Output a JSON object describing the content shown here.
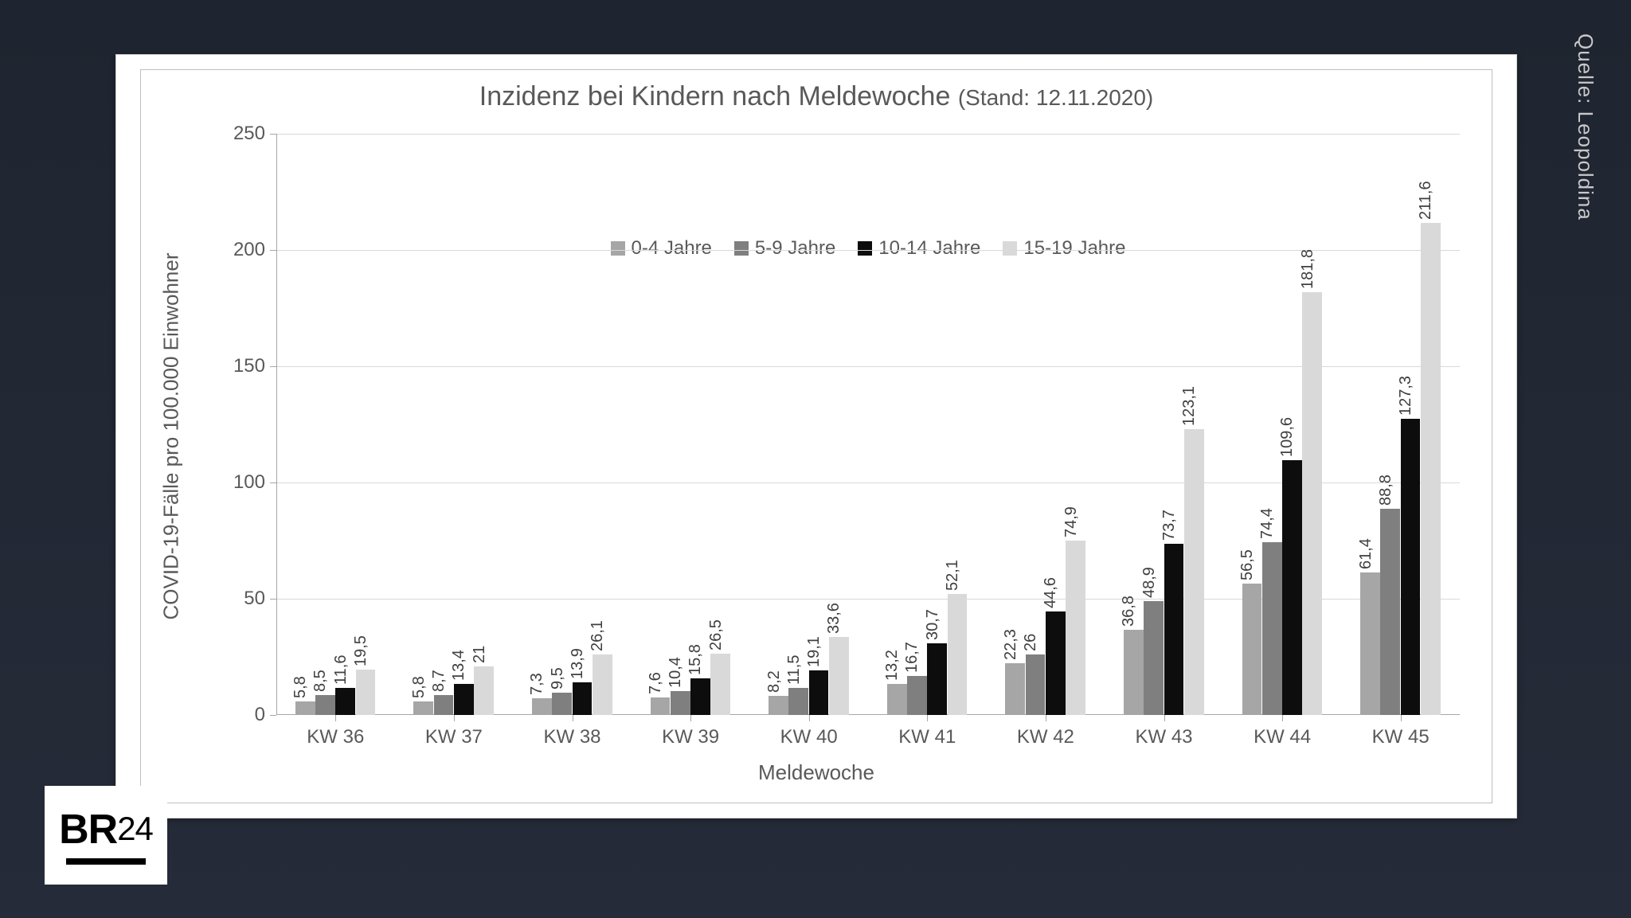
{
  "background_gradient": [
    "#1f2530",
    "#252b38"
  ],
  "chart": {
    "type": "grouped-bar",
    "title_main": "Inzidenz bei Kindern nach Meldewoche",
    "title_sub": "(Stand: 12.11.2020)",
    "title_fontsize": 34,
    "title_color": "#595959",
    "xlabel": "Meldewoche",
    "ylabel": "COVID-19-Fälle pro 100.000 Einwohner",
    "label_fontsize": 26,
    "label_color": "#595959",
    "ylim": [
      0,
      250
    ],
    "ytick_step": 50,
    "yticks": [
      0,
      50,
      100,
      150,
      200,
      250
    ],
    "grid_color": "#d9d9d9",
    "axis_color": "#a6a6a6",
    "background_color": "#ffffff",
    "border_color": "#bfbfbf",
    "categories": [
      "KW 36",
      "KW 37",
      "KW 38",
      "KW 39",
      "KW 40",
      "KW 41",
      "KW 42",
      "KW 43",
      "KW 44",
      "KW 45"
    ],
    "series": [
      {
        "name": "0-4 Jahre",
        "color": "#a6a6a6"
      },
      {
        "name": "5-9 Jahre",
        "color": "#7f7f7f"
      },
      {
        "name": "10-14 Jahre",
        "color": "#0d0d0d"
      },
      {
        "name": "15-19 Jahre",
        "color": "#d9d9d9"
      }
    ],
    "values": [
      [
        5.8,
        8.5,
        11.6,
        19.5
      ],
      [
        5.8,
        8.7,
        13.4,
        21.0
      ],
      [
        7.3,
        9.5,
        13.9,
        26.1
      ],
      [
        7.6,
        10.4,
        15.8,
        26.5
      ],
      [
        8.2,
        11.5,
        19.1,
        33.6
      ],
      [
        13.2,
        16.7,
        30.7,
        52.1
      ],
      [
        22.3,
        26.0,
        44.6,
        74.9
      ],
      [
        36.8,
        48.9,
        73.7,
        123.1
      ],
      [
        56.5,
        74.4,
        109.6,
        181.8
      ],
      [
        61.4,
        88.8,
        127.3,
        211.6
      ]
    ],
    "value_labels": [
      [
        "5,8",
        "8,5",
        "11,6",
        "19,5"
      ],
      [
        "5,8",
        "8,7",
        "13,4",
        "21"
      ],
      [
        "7,3",
        "9,5",
        "13,9",
        "26,1"
      ],
      [
        "7,6",
        "10,4",
        "15,8",
        "26,5"
      ],
      [
        "8,2",
        "11,5",
        "19,1",
        "33,6"
      ],
      [
        "13,2",
        "16,7",
        "30,7",
        "52,1"
      ],
      [
        "22,3",
        "26",
        "44,6",
        "74,9"
      ],
      [
        "36,8",
        "48,9",
        "73,7",
        "123,1"
      ],
      [
        "56,5",
        "74,4",
        "109,6",
        "181,8"
      ],
      [
        "61,4",
        "88,8",
        "127,3",
        "211,6"
      ]
    ],
    "bar_label_fontsize": 20,
    "bar_label_color": "#404040",
    "tick_fontsize": 24,
    "bar_group_width": 0.68,
    "bar_gap_inner": 0.02
  },
  "source_text": "Quelle: Leopoldina",
  "source_color": "#c8c8c8",
  "logo": {
    "text_main": "BR",
    "text_num": "24",
    "bg": "#ffffff",
    "fg": "#000000"
  }
}
